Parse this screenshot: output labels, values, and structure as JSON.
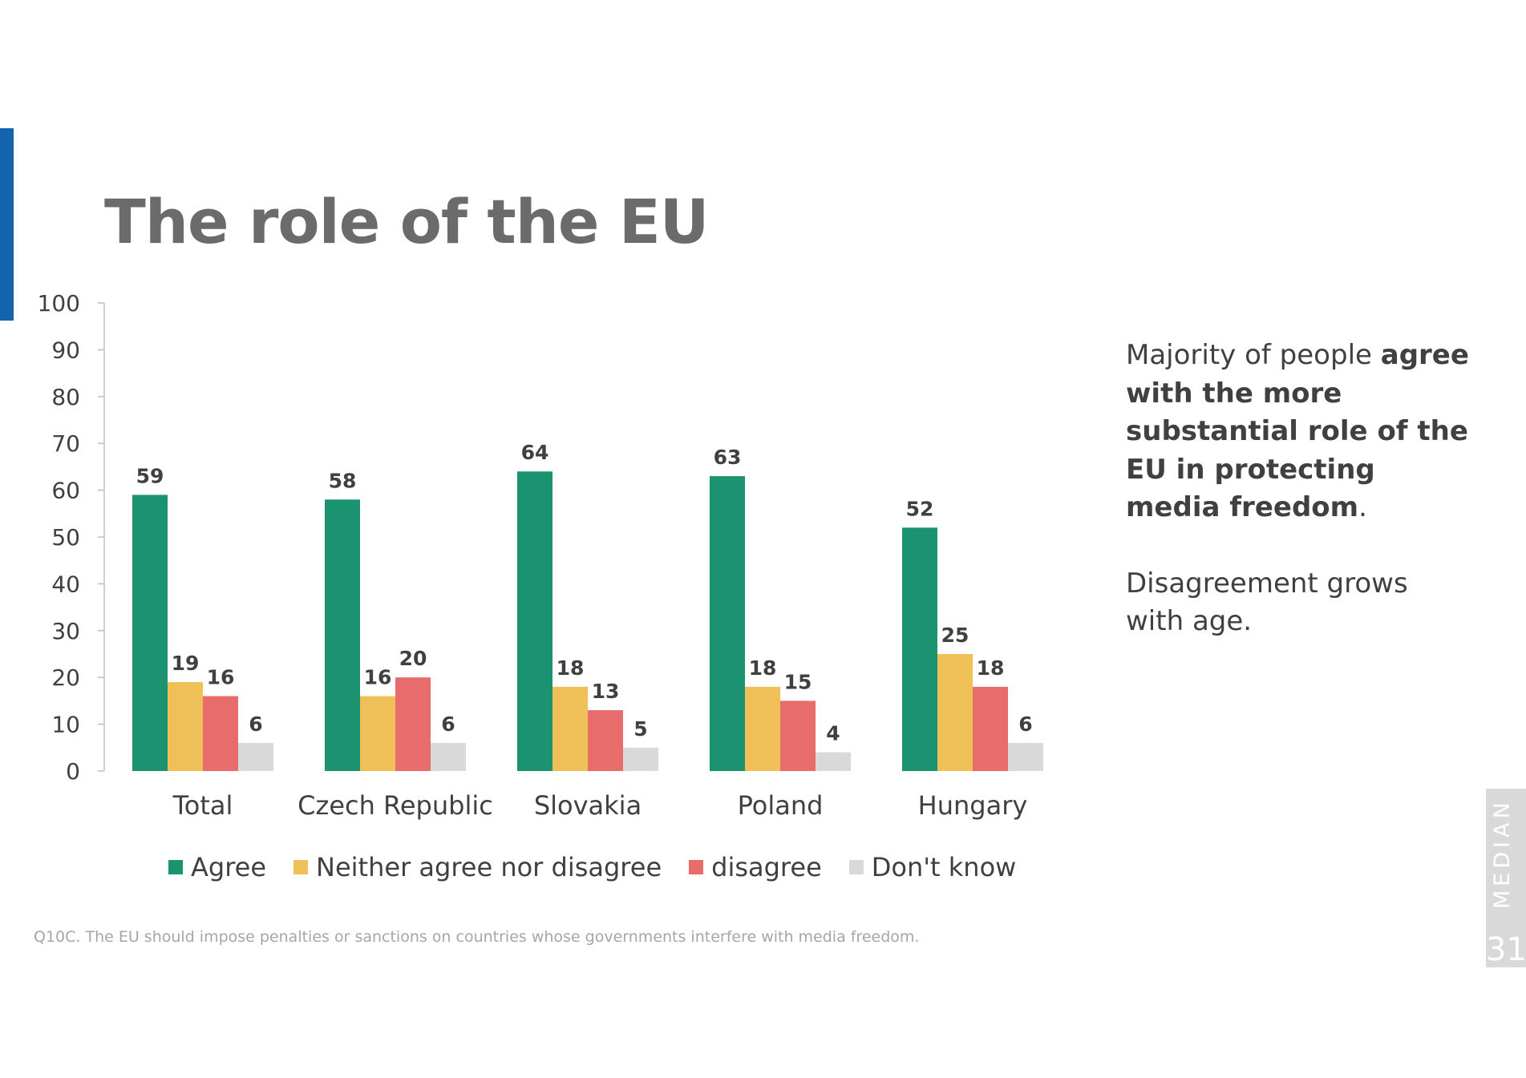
{
  "slide": {
    "title": "The role of the EU",
    "side_note": {
      "p1_normal": "Majority of people ",
      "p1_bold": "agree with the more substantial role of the EU in protecting media freedom",
      "p1_end": ".",
      "p2": "Disagreement grows with age."
    },
    "footnote": "Q10C. The EU should impose penalties or sanctions on countries whose governments interfere with media freedom.",
    "brand": "MEDIAN",
    "page_number": "31"
  },
  "colors": {
    "accent": "#1363ae",
    "agree": "#1b9370",
    "neither": "#f0c058",
    "disagree": "#e86c6c",
    "dont_know": "#d9d9d9"
  },
  "chart_data": {
    "type": "bar",
    "title": "",
    "xlabel": "",
    "ylabel": "",
    "ylim": [
      0,
      100
    ],
    "yticks": [
      0,
      10,
      20,
      30,
      40,
      50,
      60,
      70,
      80,
      90,
      100
    ],
    "categories": [
      "Total",
      "Czech Republic",
      "Slovakia",
      "Poland",
      "Hungary"
    ],
    "series": [
      {
        "name": "Agree",
        "color_key": "agree",
        "values": [
          59,
          58,
          64,
          63,
          52
        ]
      },
      {
        "name": "Neither agree nor disagree",
        "color_key": "neither",
        "values": [
          19,
          16,
          18,
          18,
          25
        ]
      },
      {
        "name": "disagree",
        "color_key": "disagree",
        "values": [
          16,
          20,
          13,
          15,
          18
        ]
      },
      {
        "name": "Don't know",
        "color_key": "dont_know",
        "values": [
          6,
          6,
          5,
          4,
          6
        ]
      }
    ],
    "legend_position": "bottom",
    "grid": false
  }
}
